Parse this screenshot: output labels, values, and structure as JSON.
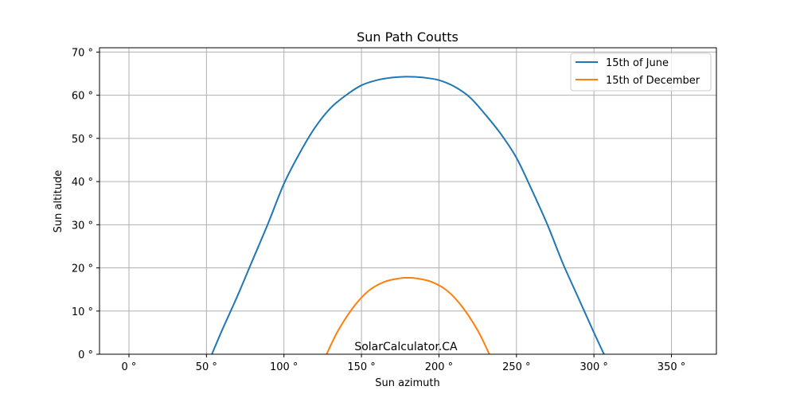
{
  "chart_data": {
    "type": "line",
    "title": "Sun Path Coutts",
    "xlabel": "Sun azimuth",
    "ylabel": "Sun altitude",
    "xlim": [
      -19,
      379
    ],
    "ylim": [
      0,
      71
    ],
    "x_ticks": [
      0,
      50,
      100,
      150,
      200,
      250,
      300,
      350
    ],
    "x_tick_labels": [
      "0 °",
      "50 °",
      "100 °",
      "150 °",
      "200 °",
      "250 °",
      "300 °",
      "350 °"
    ],
    "y_ticks": [
      0,
      10,
      20,
      30,
      40,
      50,
      60,
      70
    ],
    "y_tick_labels": [
      "0 °",
      "10 °",
      "20 °",
      "30 °",
      "40 °",
      "50 °",
      "60 °",
      "70 °"
    ],
    "grid": true,
    "legend_position": "top-right",
    "annotation": "SolarCalculator.CA",
    "series": [
      {
        "name": "15th of June",
        "color": "#1f77b4",
        "x": [
          53.5,
          60,
          70,
          80,
          90,
          100,
          110,
          120,
          130,
          140,
          150,
          160,
          170,
          180,
          190,
          200,
          210,
          220,
          230,
          240,
          250,
          260,
          270,
          280,
          290,
          300,
          306.5
        ],
        "y": [
          0,
          5.5,
          13.5,
          22,
          30.5,
          39.5,
          46.5,
          52.5,
          57,
          60,
          62.3,
          63.5,
          64.1,
          64.3,
          64.1,
          63.5,
          62,
          59.5,
          55.5,
          51,
          45.5,
          38,
          30,
          21,
          13,
          5,
          0
        ]
      },
      {
        "name": "15th of December",
        "color": "#ff7f0e",
        "x": [
          127.5,
          135,
          145,
          155,
          165,
          175,
          180,
          185,
          195,
          205,
          215,
          225,
          232.5
        ],
        "y": [
          0,
          5.5,
          11,
          14.8,
          16.8,
          17.6,
          17.7,
          17.6,
          16.8,
          14.8,
          11,
          5.5,
          0
        ]
      }
    ]
  }
}
